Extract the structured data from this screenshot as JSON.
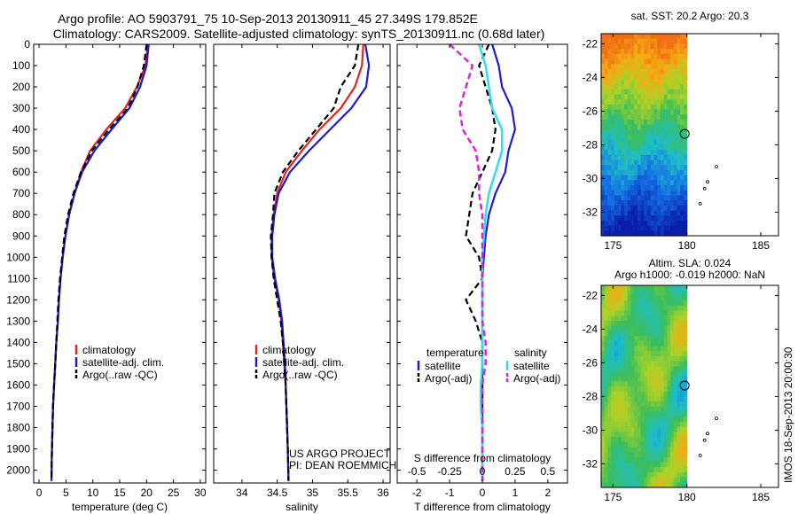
{
  "title": {
    "line1": "Argo profile: AO 5903791_75 10-Sep-2013 20130911_45 27.349S 179.852E",
    "line2": "Climatology: CARS2009. Satellite-adjusted climatology: synTS_20130911.nc (0.68d later)"
  },
  "footnote_vertical": "IMOS 18-Sep-2013 20:00:30",
  "project_note": {
    "line1": "US ARGO PROJECT",
    "line2": "PI: DEAN ROEMMICH"
  },
  "colors": {
    "climatology": "#e8231e",
    "satellite": "#1a1ad8",
    "argo": "#000000",
    "sal_satellite": "#2ee0e8",
    "sal_argo": "#e020e0"
  },
  "chart_data": [
    {
      "type": "line",
      "xlabel": "temperature (deg C)",
      "xlim": [
        -1,
        31
      ],
      "xticks": [
        0,
        5,
        10,
        15,
        20,
        25,
        30
      ],
      "ylim": [
        2060,
        0
      ],
      "yticks": [
        0,
        100,
        200,
        300,
        400,
        500,
        600,
        700,
        800,
        900,
        1000,
        1100,
        1200,
        1300,
        1400,
        1500,
        1600,
        1700,
        1800,
        1900,
        2000
      ],
      "legend": [
        "climatology",
        "satellite-adj. clim.",
        "Argo(..raw -QC)"
      ],
      "series": [
        {
          "name": "climatology",
          "x": [
            20.2,
            19.8,
            18.2,
            16.0,
            12.5,
            9.5,
            7.8,
            6.6,
            5.6,
            4.9,
            4.4,
            4.0,
            3.7,
            3.5,
            3.2,
            3.0,
            2.8,
            2.6,
            2.5,
            2.4,
            2.3
          ],
          "y": [
            0,
            100,
            200,
            300,
            400,
            500,
            600,
            700,
            800,
            900,
            1000,
            1100,
            1200,
            1300,
            1400,
            1500,
            1600,
            1700,
            1800,
            1900,
            2050
          ]
        },
        {
          "name": "satellite-adj. clim.",
          "x": [
            20.4,
            20.0,
            18.8,
            16.8,
            13.5,
            10.3,
            8.0,
            6.6,
            5.6,
            4.9,
            4.4,
            4.0,
            3.7,
            3.5,
            3.2,
            3.0,
            2.8,
            2.6,
            2.5,
            2.4,
            2.3
          ],
          "y": [
            0,
            100,
            200,
            300,
            400,
            500,
            600,
            700,
            800,
            900,
            1000,
            1100,
            1200,
            1300,
            1400,
            1500,
            1600,
            1700,
            1800,
            1900,
            2050
          ]
        },
        {
          "name": "Argo(..raw -QC)",
          "x": [
            20.0,
            19.5,
            18.3,
            16.5,
            13.0,
            9.8,
            7.8,
            6.4,
            5.4,
            4.7,
            4.3,
            3.9,
            3.6,
            3.4,
            3.2,
            3.0,
            2.8,
            2.6,
            2.5,
            2.4,
            2.3
          ],
          "y": [
            0,
            100,
            200,
            300,
            400,
            500,
            600,
            700,
            800,
            900,
            1000,
            1100,
            1200,
            1300,
            1400,
            1500,
            1600,
            1700,
            1800,
            1900,
            2050
          ]
        }
      ]
    },
    {
      "type": "line",
      "xlabel": "salinity",
      "xlim": [
        33.6,
        36.1
      ],
      "xticks": [
        34,
        34.5,
        35,
        35.5,
        36
      ],
      "ylim": [
        2060,
        0
      ],
      "legend": [
        "climatology",
        "satellite-adj. clim.",
        "Argo(..raw -QC)"
      ],
      "series": [
        {
          "name": "climatology",
          "x": [
            35.72,
            35.7,
            35.6,
            35.4,
            35.1,
            34.85,
            34.62,
            34.5,
            34.45,
            34.42,
            34.42,
            34.46,
            34.52,
            34.56,
            34.58,
            34.6,
            34.62,
            34.63,
            34.64,
            34.65,
            34.66
          ],
          "y": [
            0,
            100,
            200,
            300,
            400,
            500,
            600,
            700,
            800,
            900,
            1000,
            1100,
            1200,
            1300,
            1400,
            1500,
            1600,
            1700,
            1800,
            1900,
            2050
          ]
        },
        {
          "name": "satellite-adj. clim.",
          "x": [
            35.75,
            35.8,
            35.76,
            35.55,
            35.25,
            34.95,
            34.68,
            34.52,
            34.46,
            34.43,
            34.43,
            34.47,
            34.53,
            34.57,
            34.59,
            34.61,
            34.62,
            34.63,
            34.64,
            34.65,
            34.66
          ],
          "y": [
            0,
            100,
            200,
            300,
            400,
            500,
            600,
            700,
            800,
            900,
            1000,
            1100,
            1200,
            1300,
            1400,
            1500,
            1600,
            1700,
            1800,
            1900,
            2050
          ]
        },
        {
          "name": "Argo(..raw -QC)",
          "x": [
            35.65,
            35.6,
            35.4,
            35.3,
            35.05,
            34.8,
            34.58,
            34.46,
            34.44,
            34.41,
            34.42,
            34.45,
            34.5,
            34.55,
            34.58,
            34.6,
            34.62,
            34.63,
            34.64,
            34.65,
            34.66
          ],
          "y": [
            0,
            100,
            200,
            300,
            400,
            500,
            600,
            700,
            800,
            900,
            1000,
            1100,
            1200,
            1300,
            1400,
            1500,
            1600,
            1700,
            1800,
            1900,
            2050
          ]
        }
      ]
    },
    {
      "type": "line",
      "xlabel": "T difference from climatology",
      "xlabel_top": "S difference from climatology",
      "xlim": [
        -2.6,
        2.6
      ],
      "xticks": [
        -2,
        -1,
        0,
        1,
        2
      ],
      "xticks_secondary": [
        -0.5,
        -0.25,
        0,
        0.25,
        0.5
      ],
      "ylim": [
        2060,
        0
      ],
      "legend_temperature_title": "temperature",
      "legend_salinity_title": "salinity",
      "legend": [
        "satellite",
        "Argo(-adj)",
        "satellite",
        "Argo(-adj)"
      ],
      "series": [
        {
          "name": "satellite",
          "x": [
            0.3,
            0.5,
            0.6,
            0.9,
            1.0,
            0.8,
            0.7,
            0.4,
            0.2,
            0.1,
            0.05,
            0.0,
            0.0,
            0.0,
            0.0,
            0.0,
            0.0,
            0.0,
            0.0,
            0.0,
            0.0
          ],
          "y": [
            0,
            100,
            200,
            300,
            400,
            500,
            600,
            700,
            800,
            900,
            1000,
            1100,
            1200,
            1300,
            1400,
            1500,
            1600,
            1700,
            1800,
            1900,
            2050
          ]
        },
        {
          "name": "Argo(-adj)",
          "x": [
            0.2,
            -0.1,
            0.1,
            0.3,
            0.4,
            0.3,
            0.0,
            -0.3,
            -0.4,
            -0.5,
            -0.1,
            0.0,
            -0.5,
            -0.2,
            0.0,
            0.0,
            0.0,
            0.0,
            0.0,
            0.0,
            0.0
          ],
          "y": [
            0,
            100,
            200,
            300,
            400,
            500,
            600,
            700,
            800,
            900,
            1000,
            1100,
            1200,
            1300,
            1400,
            1500,
            1600,
            1700,
            1800,
            1900,
            2050
          ]
        },
        {
          "name": "satellite",
          "x": [
            -0.1,
            0.1,
            0.2,
            0.3,
            0.6,
            0.6,
            0.4,
            0.2,
            0.1,
            0.05,
            0.0,
            0.0,
            0.0,
            0.0,
            0.0,
            0.0,
            -0.05,
            -0.05,
            0.0,
            0.0,
            0.0
          ],
          "y": [
            0,
            100,
            200,
            300,
            400,
            500,
            600,
            700,
            800,
            900,
            1000,
            1100,
            1200,
            1300,
            1400,
            1500,
            1600,
            1700,
            1800,
            1900,
            2050
          ]
        },
        {
          "name": "Argo(-adj)",
          "x": [
            -1.0,
            -0.3,
            -0.5,
            -0.7,
            -0.6,
            -0.2,
            -0.1,
            -0.1,
            0.0,
            0.0,
            0.0,
            0.0,
            0.0,
            0.0,
            0.1,
            0.1,
            0.0,
            0.0,
            0.0,
            0.0,
            0.0
          ],
          "y": [
            0,
            100,
            200,
            300,
            400,
            500,
            600,
            700,
            800,
            900,
            1000,
            1100,
            1200,
            1300,
            1400,
            1500,
            1600,
            1700,
            1800,
            1900,
            2050
          ]
        }
      ]
    },
    {
      "type": "heatmap",
      "title": "sat. SST: 20.2  Argo: 20.3",
      "xlim": [
        174.2,
        186.2
      ],
      "ylim": [
        -33.4,
        -21.4
      ],
      "xticks": [
        175,
        180,
        185
      ],
      "yticks": [
        -22,
        -24,
        -26,
        -28,
        -30,
        -32
      ],
      "data_extent_lon": [
        174.2,
        180.0
      ],
      "profile_marker": {
        "lon": 179.85,
        "lat": -27.35
      },
      "track_points": [
        {
          "lon": 182.0,
          "lat": -29.3
        },
        {
          "lon": 181.4,
          "lat": -30.2
        },
        {
          "lon": 181.2,
          "lat": -30.6
        },
        {
          "lon": 180.9,
          "lat": -31.5
        }
      ]
    },
    {
      "type": "heatmap",
      "title": "Altim. SLA: 0.024",
      "subtitle": "Argo h1000: -0.019 h2000: NaN",
      "xlim": [
        174.2,
        186.2
      ],
      "ylim": [
        -33.4,
        -21.4
      ],
      "xticks": [
        175,
        180,
        185
      ],
      "yticks": [
        -22,
        -24,
        -26,
        -28,
        -30,
        -32
      ],
      "data_extent_lon": [
        174.2,
        180.0
      ],
      "profile_marker": {
        "lon": 179.85,
        "lat": -27.35
      },
      "track_points": [
        {
          "lon": 182.0,
          "lat": -29.3
        },
        {
          "lon": 181.4,
          "lat": -30.2
        },
        {
          "lon": 181.2,
          "lat": -30.6
        },
        {
          "lon": 180.9,
          "lat": -31.5
        }
      ]
    }
  ]
}
